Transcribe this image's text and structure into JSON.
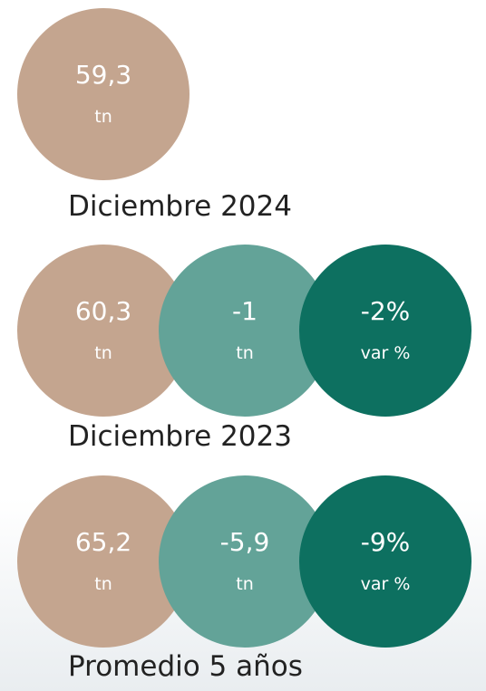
{
  "sections": [
    {
      "circles": [
        {
          "value": "59,3",
          "unit": "tn"
        }
      ],
      "label": "Diciembre 2024"
    },
    {
      "circles": [
        {
          "value": "60,3",
          "unit": "tn"
        },
        {
          "value": "-1",
          "unit": "tn"
        },
        {
          "value": "-2%",
          "unit": "var %"
        }
      ],
      "label": "Diciembre 2023"
    },
    {
      "circles": [
        {
          "value": "65,2",
          "unit": "tn"
        },
        {
          "value": "-5,9",
          "unit": "tn"
        },
        {
          "value": "-9%",
          "unit": "var %"
        }
      ],
      "label": "Promedio 5 años"
    }
  ]
}
